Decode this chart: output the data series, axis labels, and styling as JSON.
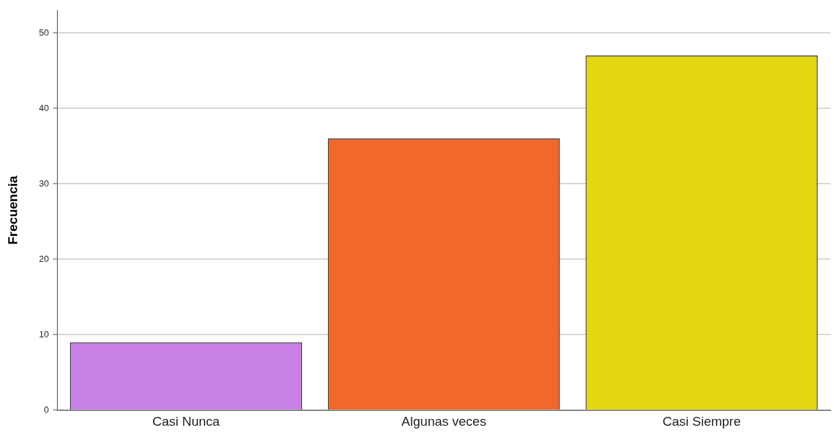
{
  "chart_data": {
    "type": "bar",
    "ylabel": "Frecuencia",
    "categories": [
      "Casi Nunca",
      "Algunas veces",
      "Casi Siempre"
    ],
    "values": [
      9,
      36,
      47
    ],
    "colors": [
      "#c880e6",
      "#f2672a",
      "#e3d80f"
    ],
    "ylim": [
      0,
      53
    ],
    "yticks": [
      0,
      10,
      20,
      30,
      40,
      50
    ],
    "grid": "y"
  }
}
